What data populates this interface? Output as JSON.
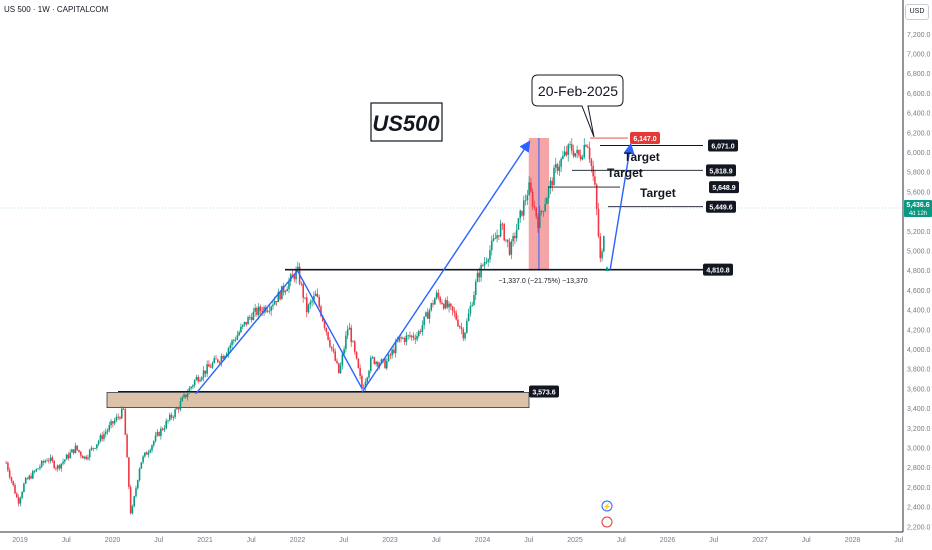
{
  "header": {
    "symbol_line": "US 500 · 1W · CAPITALCOM",
    "currency_button": "USD"
  },
  "overlay_title": "US500",
  "callout_date": "20-Feb-2025",
  "measure_label": "−1,337.0 (−21.75%) −13,370",
  "target_label": "Target",
  "price_badges": [
    {
      "price": 6147.0,
      "text": "6,147.0",
      "color": "#e53935"
    },
    {
      "price": 6071.0,
      "text": "6,071.0",
      "color": "#131722"
    },
    {
      "price": 5818.9,
      "text": "5,818.9",
      "color": "#131722"
    },
    {
      "price": 5648.9,
      "text": "5,648.9",
      "color": "#131722"
    },
    {
      "price": 5449.6,
      "text": "5,449.6",
      "color": "#131722"
    },
    {
      "price": 4810.8,
      "text": "4,810.8",
      "color": "#131722"
    },
    {
      "price": 3573.6,
      "text": "3,573.6",
      "color": "#131722"
    }
  ],
  "last_price": {
    "value": "5,436.6",
    "countdown": "4d 12h",
    "color": "#089981"
  },
  "colors": {
    "up": "#089981",
    "down": "#f23645",
    "arrow": "#2962ff",
    "zone": "#d7b899",
    "drop": "#f28e8e"
  },
  "chart_data": {
    "type": "candlestick",
    "y_axis": {
      "min": 2100,
      "max": 7400,
      "ticks": [
        2200,
        2400,
        2600,
        2800,
        3000,
        3200,
        3400,
        3600,
        3800,
        4000,
        4200,
        4400,
        4600,
        4800,
        5000,
        5200,
        5400,
        5600,
        5800,
        6000,
        6200,
        6400,
        6600,
        6800,
        7000,
        7200
      ]
    },
    "x_axis": {
      "min": 2019.0,
      "max": 2028.9,
      "ticks": [
        {
          "x": 2019.0,
          "label": "2019"
        },
        {
          "x": 2019.5,
          "label": "Jul"
        },
        {
          "x": 2020.0,
          "label": "2020"
        },
        {
          "x": 2020.5,
          "label": "Jul"
        },
        {
          "x": 2021.0,
          "label": "2021"
        },
        {
          "x": 2021.5,
          "label": "Jul"
        },
        {
          "x": 2022.0,
          "label": "2022"
        },
        {
          "x": 2022.5,
          "label": "Jul"
        },
        {
          "x": 2023.0,
          "label": "2023"
        },
        {
          "x": 2023.5,
          "label": "Jul"
        },
        {
          "x": 2024.0,
          "label": "2024"
        },
        {
          "x": 2024.5,
          "label": "Jul"
        },
        {
          "x": 2025.0,
          "label": "2025"
        },
        {
          "x": 2025.5,
          "label": "Jul"
        },
        {
          "x": 2026.0,
          "label": "2026"
        },
        {
          "x": 2026.5,
          "label": "Jul"
        },
        {
          "x": 2027.0,
          "label": "2027"
        },
        {
          "x": 2027.5,
          "label": "Jul"
        },
        {
          "x": 2028.0,
          "label": "2028"
        },
        {
          "x": 2028.5,
          "label": "Jul"
        }
      ]
    },
    "price_path": [
      [
        2018.85,
        2850
      ],
      [
        2018.98,
        2450
      ],
      [
        2019.05,
        2650
      ],
      [
        2019.3,
        2900
      ],
      [
        2019.4,
        2800
      ],
      [
        2019.6,
        3000
      ],
      [
        2019.7,
        2900
      ],
      [
        2020.0,
        3250
      ],
      [
        2020.12,
        3380
      ],
      [
        2020.2,
        2300
      ],
      [
        2020.3,
        2850
      ],
      [
        2020.5,
        3150
      ],
      [
        2020.7,
        3400
      ],
      [
        2020.9,
        3700
      ],
      [
        2021.2,
        3950
      ],
      [
        2021.5,
        4350
      ],
      [
        2021.7,
        4450
      ],
      [
        2021.8,
        4550
      ],
      [
        2022.0,
        4800
      ],
      [
        2022.1,
        4400
      ],
      [
        2022.2,
        4550
      ],
      [
        2022.45,
        3750
      ],
      [
        2022.55,
        4250
      ],
      [
        2022.7,
        3600
      ],
      [
        2022.8,
        3900
      ],
      [
        2022.95,
        3850
      ],
      [
        2023.1,
        4100
      ],
      [
        2023.3,
        4150
      ],
      [
        2023.5,
        4550
      ],
      [
        2023.7,
        4350
      ],
      [
        2023.8,
        4150
      ],
      [
        2023.95,
        4750
      ],
      [
        2024.2,
        5250
      ],
      [
        2024.3,
        5000
      ],
      [
        2024.5,
        5650
      ],
      [
        2024.6,
        5300
      ],
      [
        2024.8,
        5850
      ],
      [
        2024.95,
        6050
      ],
      [
        2025.05,
        5950
      ],
      [
        2025.13,
        6147
      ],
      [
        2025.22,
        5600
      ],
      [
        2025.28,
        4810
      ],
      [
        2025.33,
        5437
      ]
    ],
    "support_levels": [
      4810.8,
      3573.6
    ],
    "demand_zone": {
      "from": 3400,
      "to": 3573.6
    },
    "drop_range": {
      "x_start": 2024.5,
      "x_end": 2024.72,
      "high": 6147,
      "low": 4810
    },
    "projections": [
      {
        "from": [
          2020.9,
          3550
        ],
        "to": [
          2022.0,
          4800
        ]
      },
      {
        "from": [
          2022.0,
          4800
        ],
        "to": [
          2022.7,
          3600
        ]
      },
      {
        "from": [
          2022.7,
          3570
        ],
        "to": [
          2024.5,
          6100
        ]
      },
      {
        "from": [
          2025.38,
          4810
        ],
        "to": [
          2025.6,
          6070
        ]
      }
    ]
  }
}
